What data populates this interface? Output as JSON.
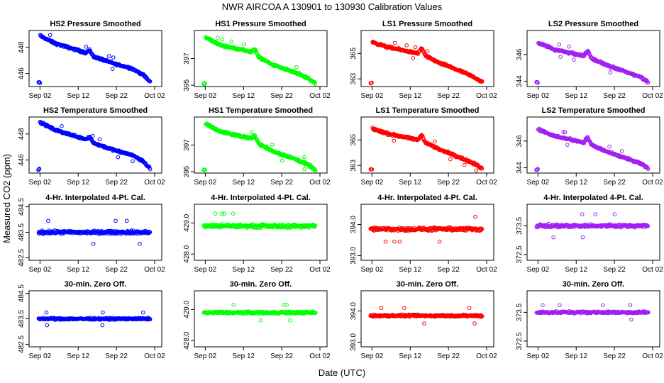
{
  "figure": {
    "title": "NWR   AIRCOA A   130901 to 130930   Calibration Values",
    "xlabel": "Date (UTC)",
    "ylabel": "Measured CO2 (ppm)"
  },
  "colors": {
    "HS2": "#0000ff",
    "HS1": "#00ff00",
    "LS1": "#ff0000",
    "LS2": "#a020f0"
  },
  "chart_data": [
    {
      "type": "scatter",
      "id": "r0c0",
      "title": "HS2 Pressure Smoothed",
      "color_key": "HS2",
      "mode": "trend",
      "x_ticks": [
        "Sep 02",
        "Sep 12",
        "Sep 22",
        "Oct 02"
      ],
      "xlim": [
        0,
        31
      ],
      "ylim": [
        445.0,
        449.3
      ],
      "y_ticks": [
        446,
        448
      ],
      "y_tick_labels": [
        "446",
        "448"
      ],
      "segments": [
        [
          1,
          448.9
        ],
        [
          5,
          448.3
        ],
        [
          13,
          447.6
        ],
        [
          14,
          447.8
        ],
        [
          15,
          447.3
        ],
        [
          19,
          446.9
        ],
        [
          21,
          446.7
        ],
        [
          25,
          446.4
        ],
        [
          28,
          445.9
        ],
        [
          30,
          445.3
        ]
      ],
      "noise": 0.12
    },
    {
      "type": "scatter",
      "id": "r0c1",
      "title": "HS1 Pressure Smoothed",
      "color_key": "HS1",
      "mode": "trend",
      "x_ticks": [
        "Sep 02",
        "Sep 12",
        "Sep 22",
        "Oct 02"
      ],
      "xlim": [
        0,
        31
      ],
      "ylim": [
        394.9,
        399.1
      ],
      "y_ticks": [
        395,
        397
      ],
      "y_tick_labels": [
        "395",
        "397"
      ],
      "segments": [
        [
          1,
          398.6
        ],
        [
          5,
          398.0
        ],
        [
          13,
          397.5
        ],
        [
          14,
          397.7
        ],
        [
          15,
          397.1
        ],
        [
          19,
          396.5
        ],
        [
          21,
          396.3
        ],
        [
          25,
          395.9
        ],
        [
          28,
          395.5
        ],
        [
          30,
          395.1
        ]
      ],
      "noise": 0.12
    },
    {
      "type": "scatter",
      "id": "r0c2",
      "title": "LS1 Pressure Smoothed",
      "color_key": "LS1",
      "mode": "trend",
      "x_ticks": [
        "Sep 02",
        "Sep 12",
        "Sep 22",
        "Oct 02"
      ],
      "xlim": [
        0,
        31
      ],
      "ylim": [
        362.4,
        366.8
      ],
      "y_ticks": [
        363,
        365
      ],
      "y_tick_labels": [
        "363",
        "365"
      ],
      "segments": [
        [
          1,
          365.9
        ],
        [
          5,
          365.5
        ],
        [
          13,
          365.0
        ],
        [
          14,
          365.4
        ],
        [
          15,
          364.8
        ],
        [
          19,
          364.2
        ],
        [
          21,
          364.0
        ],
        [
          25,
          363.5
        ],
        [
          28,
          363.1
        ],
        [
          30,
          362.7
        ]
      ],
      "noise": 0.12
    },
    {
      "type": "scatter",
      "id": "r0c3",
      "title": "LS2 Pressure Smoothed",
      "color_key": "LS2",
      "mode": "trend",
      "x_ticks": [
        "Sep 02",
        "Sep 12",
        "Sep 22",
        "Oct 02"
      ],
      "xlim": [
        0,
        31
      ],
      "ylim": [
        343.6,
        347.8
      ],
      "y_ticks": [
        344,
        346
      ],
      "y_tick_labels": [
        "344",
        "346"
      ],
      "segments": [
        [
          1,
          346.9
        ],
        [
          5,
          346.4
        ],
        [
          13,
          345.9
        ],
        [
          14,
          346.3
        ],
        [
          15,
          345.7
        ],
        [
          19,
          345.2
        ],
        [
          21,
          345.0
        ],
        [
          25,
          344.6
        ],
        [
          28,
          344.3
        ],
        [
          30,
          343.9
        ]
      ],
      "noise": 0.12
    },
    {
      "type": "scatter",
      "id": "r1c0",
      "title": "HS2 Temperature Smoothed",
      "color_key": "HS2",
      "mode": "trend",
      "x_ticks": [
        "Sep 02",
        "Sep 12",
        "Sep 22",
        "Oct 02"
      ],
      "xlim": [
        0,
        31
      ],
      "ylim": [
        445.0,
        449.3
      ],
      "y_ticks": [
        446,
        448
      ],
      "y_tick_labels": [
        "446",
        "448"
      ],
      "segments": [
        [
          1,
          448.9
        ],
        [
          5,
          448.3
        ],
        [
          13,
          447.6
        ],
        [
          14,
          447.8
        ],
        [
          15,
          447.3
        ],
        [
          19,
          446.9
        ],
        [
          21,
          446.7
        ],
        [
          25,
          446.4
        ],
        [
          28,
          445.9
        ],
        [
          30,
          445.3
        ]
      ],
      "noise": 0.12
    },
    {
      "type": "scatter",
      "id": "r1c1",
      "title": "HS1 Temperature Smoothed",
      "color_key": "HS1",
      "mode": "trend",
      "x_ticks": [
        "Sep 02",
        "Sep 12",
        "Sep 22",
        "Oct 02"
      ],
      "xlim": [
        0,
        31
      ],
      "ylim": [
        394.9,
        399.1
      ],
      "y_ticks": [
        395,
        397
      ],
      "y_tick_labels": [
        "395",
        "397"
      ],
      "segments": [
        [
          1,
          398.6
        ],
        [
          5,
          398.0
        ],
        [
          13,
          397.5
        ],
        [
          14,
          397.7
        ],
        [
          15,
          397.1
        ],
        [
          19,
          396.5
        ],
        [
          21,
          396.3
        ],
        [
          25,
          395.9
        ],
        [
          28,
          395.5
        ],
        [
          30,
          395.1
        ]
      ],
      "noise": 0.12
    },
    {
      "type": "scatter",
      "id": "r1c2",
      "title": "LS1 Temperature Smoothed",
      "color_key": "LS1",
      "mode": "trend",
      "x_ticks": [
        "Sep 02",
        "Sep 12",
        "Sep 22",
        "Oct 02"
      ],
      "xlim": [
        0,
        31
      ],
      "ylim": [
        362.4,
        366.8
      ],
      "y_ticks": [
        363,
        365
      ],
      "y_tick_labels": [
        "363",
        "365"
      ],
      "segments": [
        [
          1,
          365.9
        ],
        [
          5,
          365.5
        ],
        [
          13,
          365.0
        ],
        [
          14,
          365.4
        ],
        [
          15,
          364.8
        ],
        [
          19,
          364.2
        ],
        [
          21,
          364.0
        ],
        [
          25,
          363.5
        ],
        [
          28,
          363.1
        ],
        [
          30,
          362.7
        ]
      ],
      "noise": 0.12
    },
    {
      "type": "scatter",
      "id": "r1c3",
      "title": "LS2 Temperature Smoothed",
      "color_key": "LS2",
      "mode": "trend",
      "x_ticks": [
        "Sep 02",
        "Sep 12",
        "Sep 22",
        "Oct 02"
      ],
      "xlim": [
        0,
        31
      ],
      "ylim": [
        343.6,
        347.8
      ],
      "y_ticks": [
        344,
        346
      ],
      "y_tick_labels": [
        "344",
        "346"
      ],
      "segments": [
        [
          1,
          346.9
        ],
        [
          5,
          346.4
        ],
        [
          13,
          345.9
        ],
        [
          14,
          346.3
        ],
        [
          15,
          345.7
        ],
        [
          19,
          345.2
        ],
        [
          21,
          345.0
        ],
        [
          25,
          344.6
        ],
        [
          28,
          344.3
        ],
        [
          30,
          343.9
        ]
      ],
      "noise": 0.12
    },
    {
      "type": "scatter",
      "id": "r2c0",
      "title": "4-Hr. Interpolated 4-Pt. Cal.",
      "color_key": "HS2",
      "mode": "flat",
      "x_ticks": [
        "Sep 02",
        "Sep 12",
        "Sep 22",
        "Oct 02"
      ],
      "xlim": [
        0,
        31
      ],
      "ylim": [
        482.4,
        484.6
      ],
      "y_ticks": [
        482.5,
        483.5,
        484.5
      ],
      "y_tick_labels": [
        "482.5",
        "483.5",
        "484.5"
      ],
      "level": 483.5,
      "noise": 0.09
    },
    {
      "type": "scatter",
      "id": "r2c1",
      "title": "4-Hr. Interpolated 4-Pt. Cal.",
      "color_key": "HS1",
      "mode": "flat",
      "x_ticks": [
        "Sep 02",
        "Sep 12",
        "Sep 22",
        "Oct 02"
      ],
      "xlim": [
        0,
        31
      ],
      "ylim": [
        427.8,
        429.6
      ],
      "y_ticks": [
        428.0,
        429.0
      ],
      "y_tick_labels": [
        "428.0",
        "429.0"
      ],
      "level": 428.9,
      "noise": 0.08
    },
    {
      "type": "scatter",
      "id": "r2c2",
      "title": "4-Hr. Interpolated 4-Pt. Cal.",
      "color_key": "LS1",
      "mode": "flat",
      "x_ticks": [
        "Sep 02",
        "Sep 12",
        "Sep 22",
        "Oct 02"
      ],
      "xlim": [
        0,
        31
      ],
      "ylim": [
        392.85,
        394.65
      ],
      "y_ticks": [
        393.0,
        394.0
      ],
      "y_tick_labels": [
        "393.0",
        "394.0"
      ],
      "level": 393.85,
      "noise": 0.08
    },
    {
      "type": "scatter",
      "id": "r2c3",
      "title": "4-Hr. Interpolated 4-Pt. Cal.",
      "color_key": "LS2",
      "mode": "flat",
      "x_ticks": [
        "Sep 02",
        "Sep 12",
        "Sep 22",
        "Oct 02"
      ],
      "xlim": [
        0,
        31
      ],
      "ylim": [
        372.3,
        374.25
      ],
      "y_ticks": [
        372.5,
        373.5
      ],
      "y_tick_labels": [
        "372.5",
        "373.5"
      ],
      "level": 373.5,
      "noise": 0.08
    },
    {
      "type": "scatter",
      "id": "r3c0",
      "title": "30-min. Zero Off.",
      "color_key": "HS2",
      "mode": "flat",
      "x_ticks": [
        "Sep 02",
        "Sep 12",
        "Sep 22",
        "Oct 02"
      ],
      "xlim": [
        0,
        31
      ],
      "ylim": [
        482.4,
        484.6
      ],
      "y_ticks": [
        482.5,
        483.5,
        484.5
      ],
      "y_tick_labels": [
        "482.5",
        "483.5",
        "484.5"
      ],
      "level": 483.5,
      "noise": 0.05
    },
    {
      "type": "scatter",
      "id": "r3c1",
      "title": "30-min. Zero Off.",
      "color_key": "HS1",
      "mode": "flat",
      "x_ticks": [
        "Sep 02",
        "Sep 12",
        "Sep 22",
        "Oct 02"
      ],
      "xlim": [
        0,
        31
      ],
      "ylim": [
        427.8,
        429.6
      ],
      "y_ticks": [
        428.0,
        429.0
      ],
      "y_tick_labels": [
        "428.0",
        "429.0"
      ],
      "level": 428.9,
      "noise": 0.05
    },
    {
      "type": "scatter",
      "id": "r3c2",
      "title": "30-min. Zero Off.",
      "color_key": "LS1",
      "mode": "flat",
      "x_ticks": [
        "Sep 02",
        "Sep 12",
        "Sep 22",
        "Oct 02"
      ],
      "xlim": [
        0,
        31
      ],
      "ylim": [
        392.85,
        394.65
      ],
      "y_ticks": [
        393.0,
        394.0
      ],
      "y_tick_labels": [
        "393.0",
        "394.0"
      ],
      "level": 393.85,
      "noise": 0.05
    },
    {
      "type": "scatter",
      "id": "r3c3",
      "title": "30-min. Zero Off.",
      "color_key": "LS2",
      "mode": "flat",
      "x_ticks": [
        "Sep 02",
        "Sep 12",
        "Sep 22",
        "Oct 02"
      ],
      "xlim": [
        0,
        31
      ],
      "ylim": [
        372.3,
        374.25
      ],
      "y_ticks": [
        372.5,
        373.5
      ],
      "y_tick_labels": [
        "372.5",
        "373.5"
      ],
      "level": 373.5,
      "noise": 0.05
    }
  ]
}
